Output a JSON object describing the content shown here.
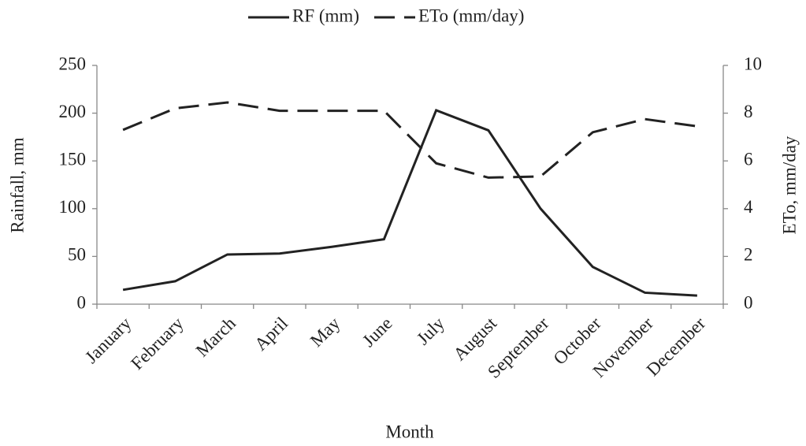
{
  "chart_data": {
    "type": "line",
    "x_label": "Month",
    "y_label": "Rainfall, mm",
    "y2_label": "ETo, mm/day",
    "categories": [
      "January",
      "February",
      "March",
      "April",
      "May",
      "June",
      "July",
      "August",
      "September",
      "October",
      "November",
      "December"
    ],
    "series": [
      {
        "name": "RF (mm)",
        "color": "#222222",
        "dash": "solid",
        "values": [
          15,
          24,
          52,
          53,
          60,
          68,
          203,
          182,
          100,
          39,
          12,
          9
        ]
      },
      {
        "name": "ETo (mm/day)",
        "color": "#222222",
        "dash": "dashed",
        "axis": "y2",
        "values": [
          7.3,
          8.2,
          8.45,
          8.1,
          8.1,
          8.1,
          5.9,
          5.3,
          5.35,
          7.2,
          7.75,
          7.45
        ]
      }
    ],
    "ylim": [
      0,
      250
    ],
    "yticks": [
      0,
      50,
      100,
      150,
      200,
      250
    ],
    "y2lim": [
      0,
      10
    ],
    "y2ticks": [
      0,
      2,
      4,
      6,
      8,
      10
    ],
    "grid": false,
    "legend": "top"
  }
}
